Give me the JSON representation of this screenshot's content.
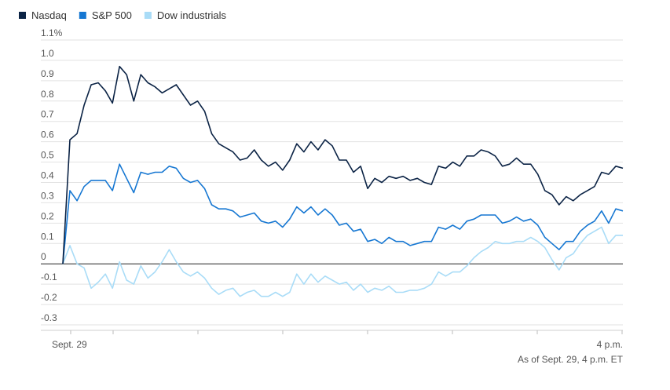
{
  "legend": [
    {
      "name": "Nasdaq",
      "color": "#0b2345"
    },
    {
      "name": "S&P 500",
      "color": "#1677d2"
    },
    {
      "name": "Dow industrials",
      "color": "#a9dcf7"
    }
  ],
  "footnote": "As of Sept. 29, 4 p.m. ET",
  "chart_data": {
    "type": "line",
    "x_tick_labels": [
      "Sept. 29",
      "4 p.m."
    ],
    "y_tick_labels": [
      "1.1%",
      "1.0",
      "0.9",
      "0.8",
      "0.7",
      "0.6",
      "0.5",
      "0.4",
      "0.3",
      "0.2",
      "0.1",
      "0",
      "-0.1",
      "-0.2",
      "-0.3"
    ],
    "y_unit": "%",
    "ylim": [
      -0.3,
      1.1
    ],
    "grid": true,
    "legend_position": "top-left",
    "series": [
      {
        "name": "Nasdaq",
        "color": "#0b2345",
        "values": [
          0.0,
          0.61,
          0.64,
          0.78,
          0.88,
          0.89,
          0.85,
          0.79,
          0.97,
          0.93,
          0.8,
          0.93,
          0.89,
          0.87,
          0.84,
          0.86,
          0.88,
          0.83,
          0.78,
          0.8,
          0.75,
          0.64,
          0.59,
          0.57,
          0.55,
          0.51,
          0.52,
          0.56,
          0.51,
          0.48,
          0.5,
          0.46,
          0.51,
          0.59,
          0.55,
          0.6,
          0.56,
          0.61,
          0.58,
          0.51,
          0.51,
          0.45,
          0.48,
          0.37,
          0.42,
          0.4,
          0.43,
          0.42,
          0.43,
          0.41,
          0.42,
          0.4,
          0.39,
          0.48,
          0.47,
          0.5,
          0.48,
          0.53,
          0.53,
          0.56,
          0.55,
          0.53,
          0.48,
          0.49,
          0.52,
          0.49,
          0.49,
          0.44,
          0.36,
          0.34,
          0.29,
          0.33,
          0.31,
          0.34,
          0.36,
          0.38,
          0.45,
          0.44,
          0.48,
          0.47
        ]
      },
      {
        "name": "S&P 500",
        "color": "#1677d2",
        "values": [
          0.0,
          0.36,
          0.31,
          0.38,
          0.41,
          0.41,
          0.41,
          0.36,
          0.49,
          0.42,
          0.35,
          0.45,
          0.44,
          0.45,
          0.45,
          0.48,
          0.47,
          0.42,
          0.4,
          0.41,
          0.37,
          0.29,
          0.27,
          0.27,
          0.26,
          0.23,
          0.24,
          0.25,
          0.21,
          0.2,
          0.21,
          0.18,
          0.22,
          0.28,
          0.25,
          0.28,
          0.24,
          0.27,
          0.24,
          0.19,
          0.2,
          0.16,
          0.17,
          0.11,
          0.12,
          0.1,
          0.13,
          0.11,
          0.11,
          0.09,
          0.1,
          0.11,
          0.11,
          0.18,
          0.17,
          0.19,
          0.17,
          0.21,
          0.22,
          0.24,
          0.24,
          0.24,
          0.2,
          0.21,
          0.23,
          0.21,
          0.22,
          0.19,
          0.13,
          0.1,
          0.07,
          0.11,
          0.11,
          0.16,
          0.19,
          0.21,
          0.26,
          0.2,
          0.27,
          0.26
        ]
      },
      {
        "name": "Dow industrials",
        "color": "#a9dcf7",
        "values": [
          0.0,
          0.09,
          0.0,
          -0.02,
          -0.12,
          -0.09,
          -0.05,
          -0.12,
          0.01,
          -0.08,
          -0.1,
          -0.01,
          -0.07,
          -0.04,
          0.01,
          0.07,
          0.01,
          -0.04,
          -0.06,
          -0.04,
          -0.07,
          -0.12,
          -0.15,
          -0.13,
          -0.12,
          -0.16,
          -0.14,
          -0.13,
          -0.16,
          -0.16,
          -0.14,
          -0.16,
          -0.14,
          -0.05,
          -0.1,
          -0.05,
          -0.09,
          -0.06,
          -0.08,
          -0.1,
          -0.09,
          -0.13,
          -0.1,
          -0.14,
          -0.12,
          -0.13,
          -0.11,
          -0.14,
          -0.14,
          -0.13,
          -0.13,
          -0.12,
          -0.1,
          -0.04,
          -0.06,
          -0.04,
          -0.04,
          -0.01,
          0.03,
          0.06,
          0.08,
          0.11,
          0.1,
          0.1,
          0.11,
          0.11,
          0.13,
          0.11,
          0.08,
          0.02,
          -0.03,
          0.03,
          0.05,
          0.1,
          0.14,
          0.16,
          0.18,
          0.1,
          0.14,
          0.14
        ]
      }
    ]
  }
}
